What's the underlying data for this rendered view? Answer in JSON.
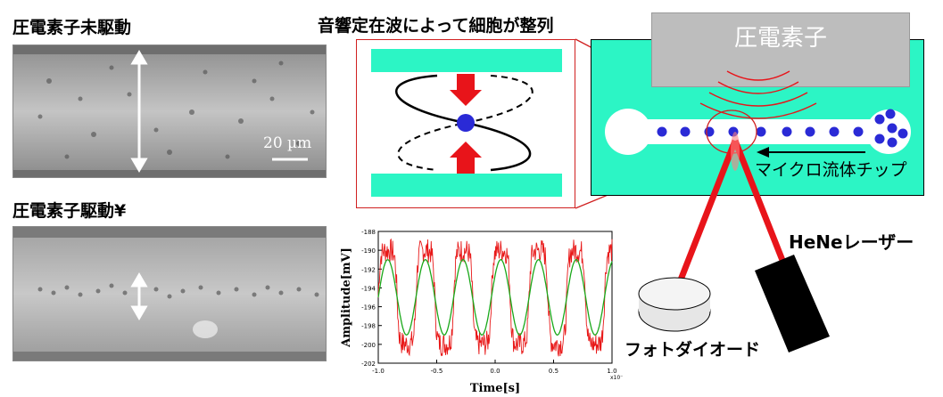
{
  "labels": {
    "not_driven": "圧電素子未駆動",
    "driven": "圧電素子駆動¥",
    "scale": "20 µm",
    "caption": "音響定在波によって細胞が整列",
    "piezo": "圧電素子",
    "microchip": "マイクロ流体チップ",
    "laser": "HeNeレーザー",
    "photodiode": "フォトダイオード"
  },
  "colors": {
    "chip": "#2cf5c5",
    "cells": "#2a2ad6",
    "laser": "#e8141a",
    "inset_border": "#d02020",
    "channel_plate": "#2cf5c5"
  },
  "chart_data": {
    "type": "line",
    "xlabel": "Time[s]",
    "ylabel": "Amplitude[mV]",
    "x_exponent_label": "x10⁻⁶",
    "xlim": [
      -1.0,
      1.0
    ],
    "ylim": [
      -202,
      -188
    ],
    "xticks": [
      "-1.0",
      "-0.5",
      "0.0",
      "0.5",
      "1.0"
    ],
    "yticks": [
      "-188",
      "-190",
      "-192",
      "-194",
      "-196",
      "-198",
      "-200",
      "-202"
    ],
    "series": [
      {
        "color": "#e81818",
        "kind": "noisy-square",
        "center": -195,
        "amplitude": 5,
        "periods": 6.2
      },
      {
        "color": "#1aa81a",
        "kind": "sine",
        "center": -195,
        "amplitude": 4,
        "periods": 6.2
      }
    ]
  }
}
